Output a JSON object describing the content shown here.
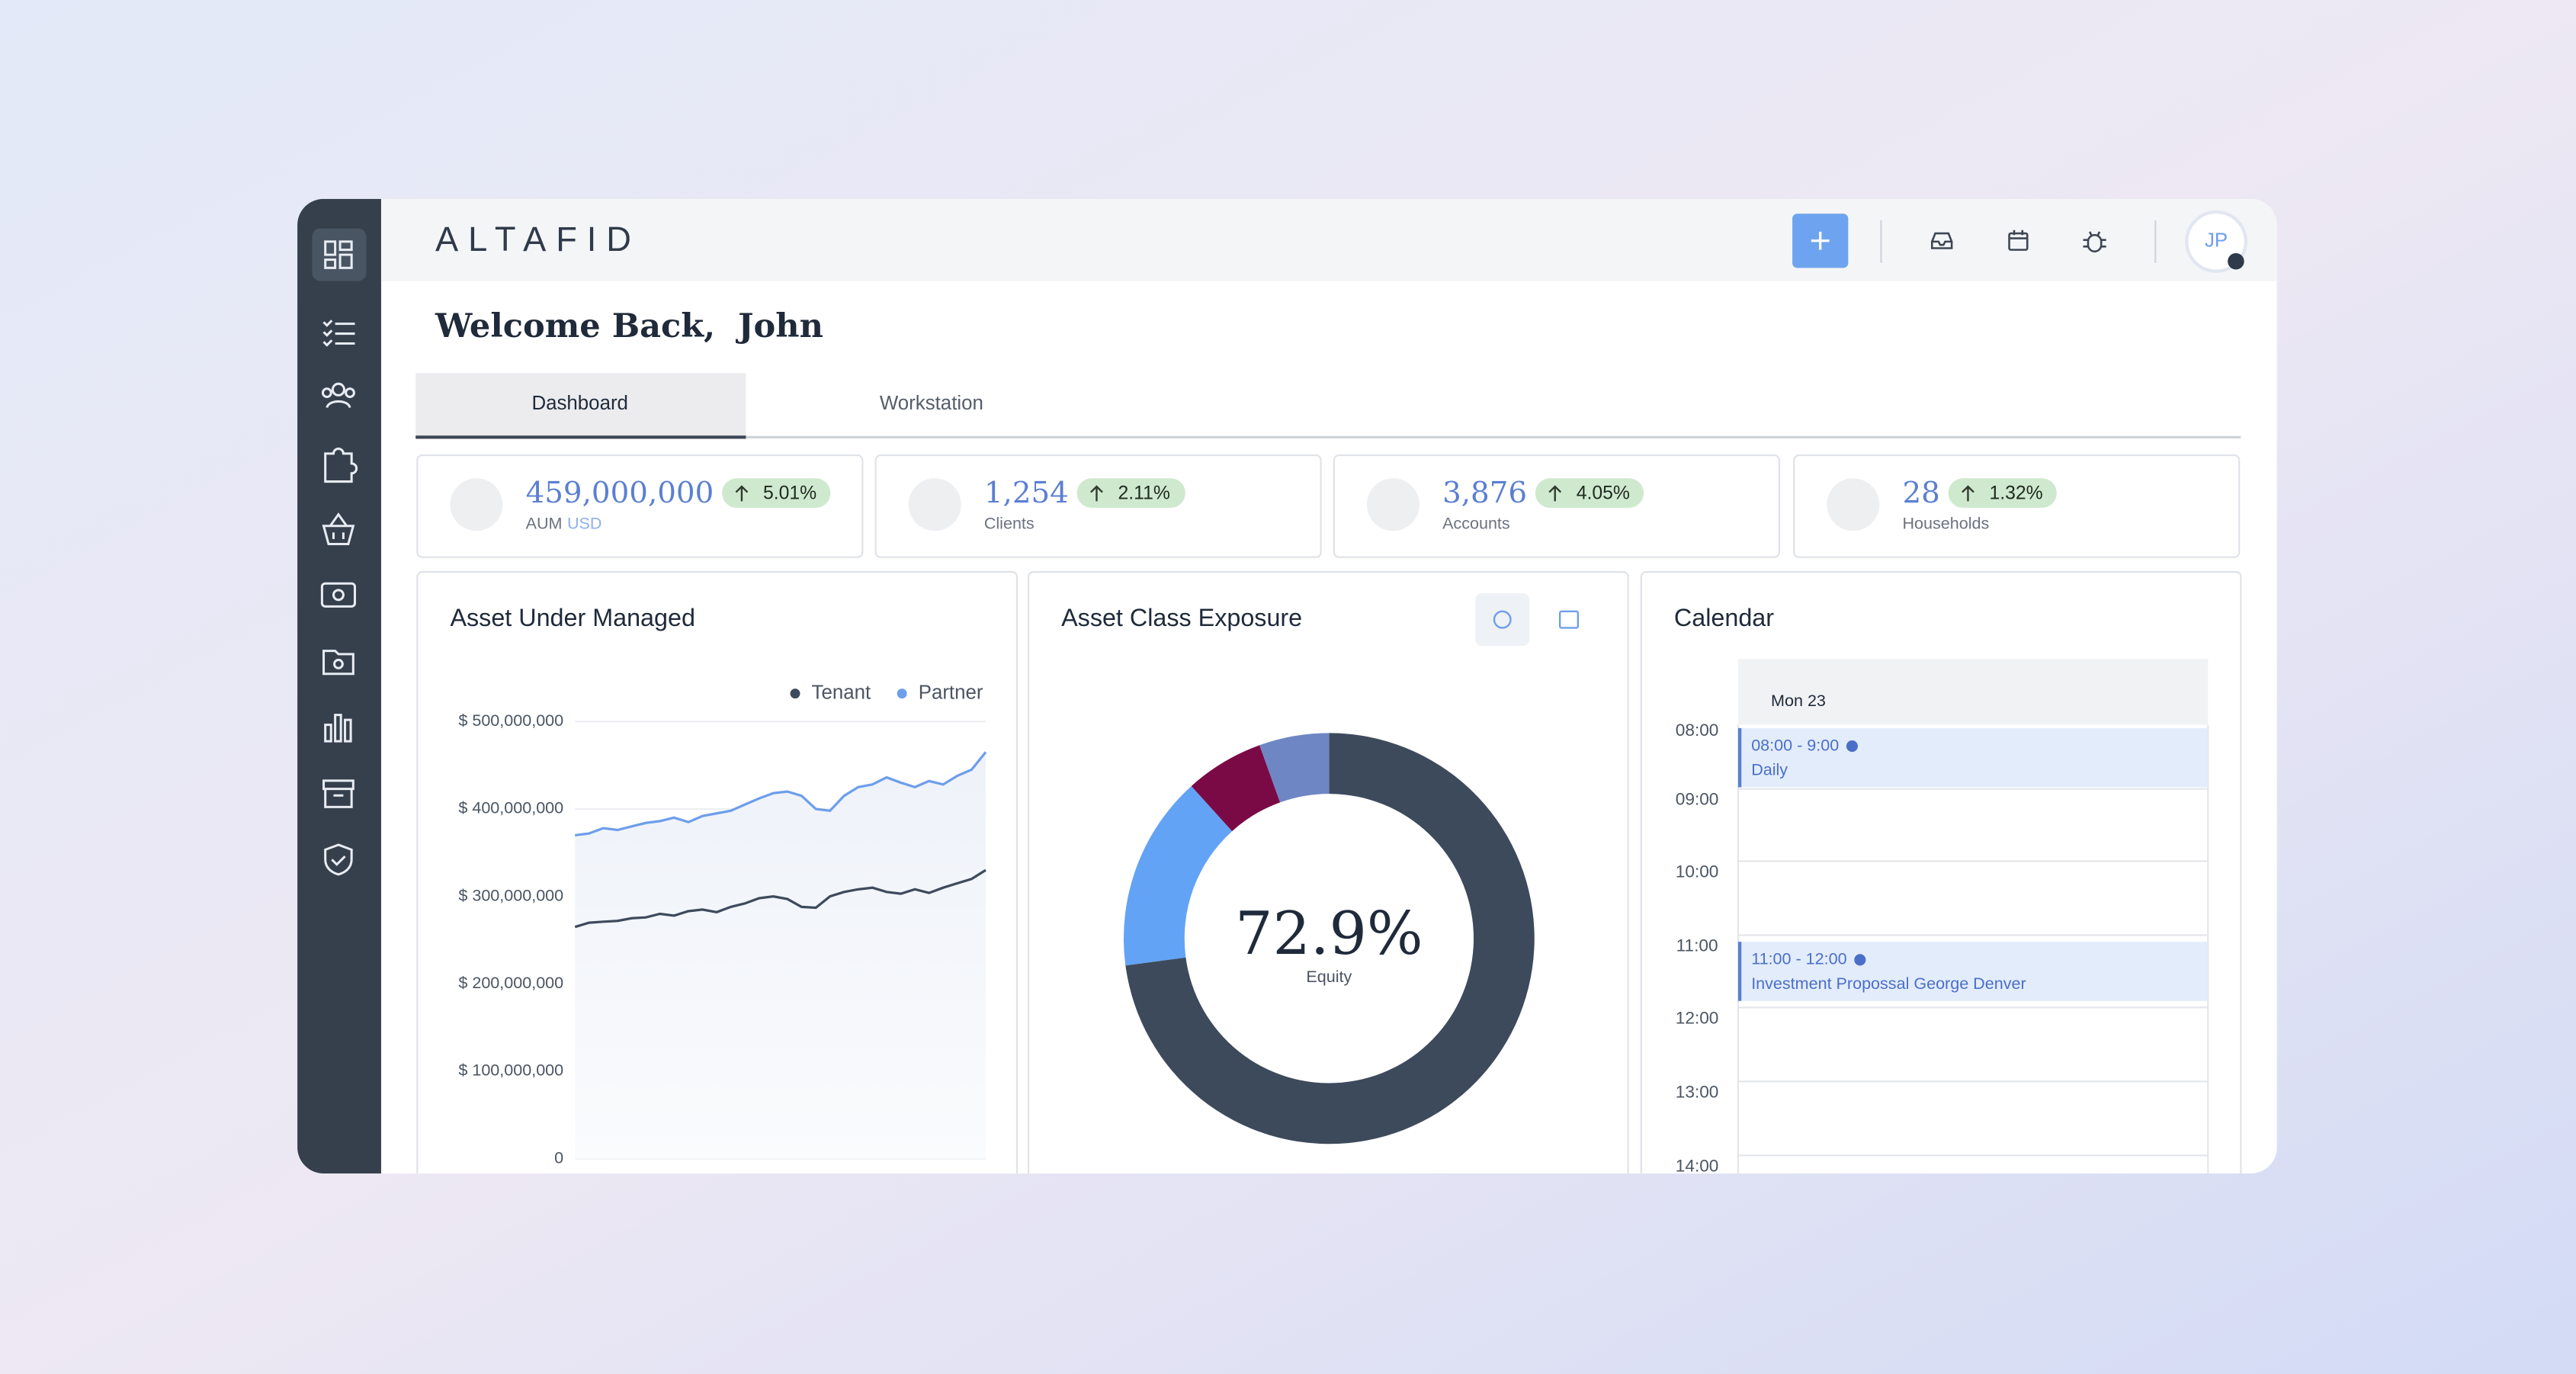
{
  "brand": "ALTAFID",
  "user_initials": "JP",
  "greeting": "Welcome Back,  John",
  "tabs": [
    "Dashboard",
    "Workstation"
  ],
  "kpis": [
    {
      "value": "459,000,000",
      "label": "AUM",
      "unit": "USD",
      "change": "5.01%"
    },
    {
      "value": "1,254",
      "label": "Clients",
      "change": "2.11%"
    },
    {
      "value": "3,876",
      "label": "Accounts",
      "change": "4.05%"
    },
    {
      "value": "28",
      "label": "Households",
      "change": "1.32%"
    }
  ],
  "chart_data": [
    {
      "type": "line",
      "title": "Asset Under Managed",
      "categories": [
        null,
        null,
        null,
        null,
        null,
        null,
        null,
        null,
        null,
        null,
        null,
        null,
        null,
        null,
        null,
        null,
        null,
        null,
        null,
        null,
        null,
        null,
        null,
        null,
        null,
        null,
        null,
        null,
        null,
        null
      ],
      "series": [
        {
          "name": "Tenant",
          "color": "#3d4a5c",
          "values": [
            265,
            270,
            271,
            272,
            275,
            276,
            280,
            278,
            283,
            285,
            282,
            288,
            292,
            298,
            300,
            297,
            288,
            287,
            300,
            305,
            308,
            310,
            305,
            303,
            308,
            304,
            310,
            315,
            320,
            330
          ]
        },
        {
          "name": "Partner",
          "color": "#6d9eeb",
          "values": [
            370,
            372,
            378,
            376,
            380,
            384,
            386,
            390,
            385,
            392,
            395,
            398,
            405,
            412,
            418,
            420,
            415,
            400,
            398,
            415,
            425,
            428,
            436,
            430,
            425,
            432,
            428,
            438,
            445,
            465
          ]
        }
      ],
      "ylim": [
        0,
        500
      ],
      "yticks": [
        {
          "value": 0,
          "label": "0"
        },
        {
          "value": 100,
          "label": "$ 100,000,000"
        },
        {
          "value": 200,
          "label": "$ 200,000,000"
        },
        {
          "value": 300,
          "label": "$ 300,000,000"
        },
        {
          "value": 400,
          "label": "$ 400,000,000"
        },
        {
          "value": 500,
          "label": "$ 500,000,000"
        }
      ],
      "grid": true,
      "legend": "top-right"
    },
    {
      "type": "donut",
      "title": "Asset Class Exposure",
      "categories": [
        "Equity",
        null,
        null,
        null
      ],
      "values": [
        72.9,
        15.4,
        6.2,
        5.5
      ],
      "value_labels": [
        "72.9%",
        null,
        null,
        null
      ],
      "colors": [
        "#3d4a5c",
        "#63a3f5",
        "#7a0a45",
        "#6f86c4"
      ]
    }
  ],
  "calendar": {
    "title": "Calendar",
    "day": "Mon 23",
    "hours": [
      "08:00",
      "09:00",
      "10:00",
      "11:00",
      "12:00",
      "13:00",
      "14:00"
    ],
    "events": [
      {
        "time": "08:00 - 9:00",
        "title": "Daily"
      },
      {
        "time": "11:00 - 12:00",
        "title": "Investment Propossal George Denver"
      }
    ]
  }
}
